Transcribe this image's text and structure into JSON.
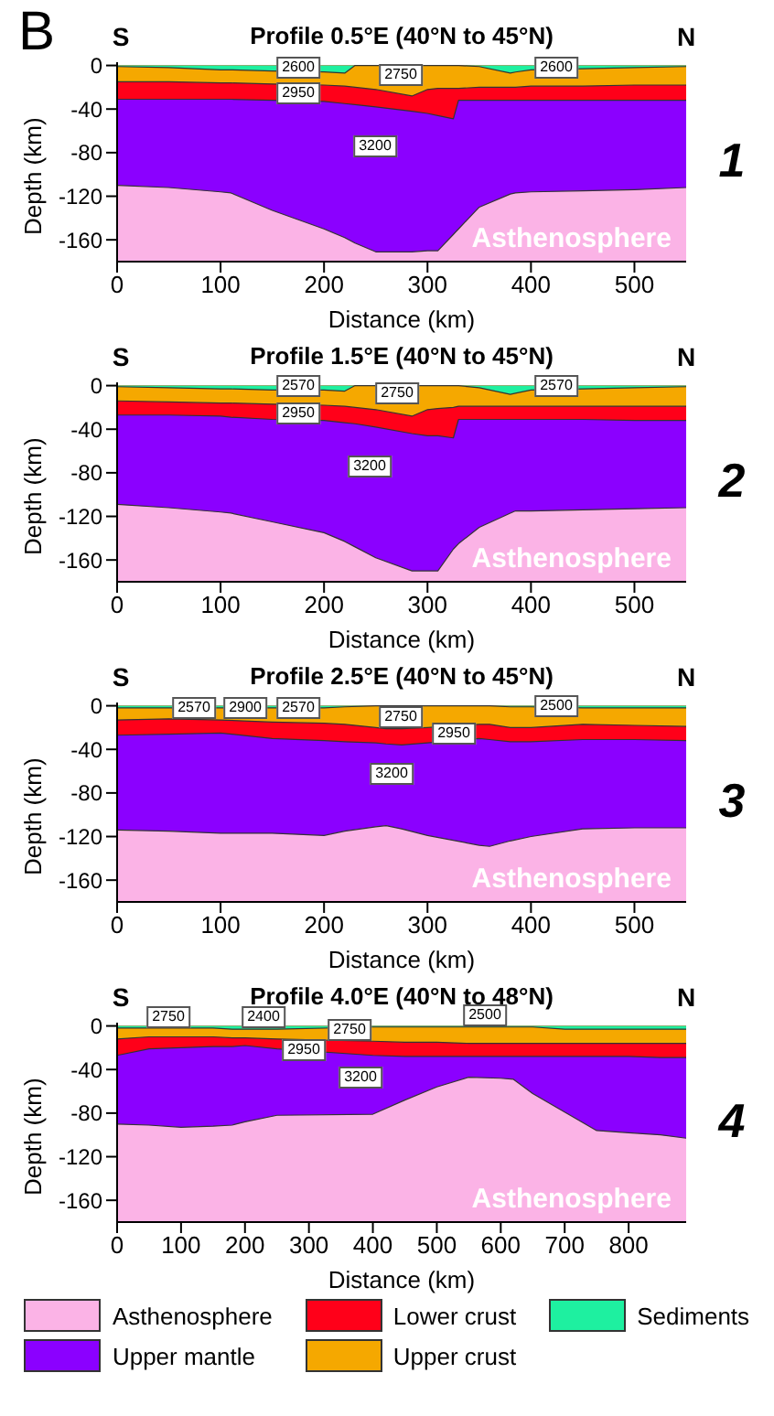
{
  "chart_data": [
    {
      "type": "area",
      "title": "Profile 0.5°E (40°N to 45°N)",
      "xlabel": "Distance (km)",
      "ylabel": "Depth (km)",
      "xlim": [
        0,
        550
      ],
      "xticks": [
        0,
        100,
        200,
        300,
        400,
        500
      ],
      "ylim": [
        -180,
        3
      ],
      "yticks": [
        0,
        -40,
        -80,
        -120,
        -160
      ],
      "bands": [
        {
          "axis": "y",
          "from": -180,
          "to": 0,
          "label": "Asthenosphere",
          "color": "#fbb3e6"
        }
      ],
      "x": [
        0,
        50,
        100,
        110,
        150,
        200,
        220,
        230,
        250,
        285,
        300,
        310,
        325,
        330,
        350,
        380,
        385,
        400,
        450,
        500,
        550
      ],
      "series": [
        {
          "color": "#8b00ff",
          "values": [
            -110,
            -112,
            -116,
            -117,
            -133,
            -150,
            -158,
            -163,
            -171,
            -171,
            -170,
            -170,
            -155,
            -150,
            -130,
            -118,
            -117,
            -116,
            -115,
            -114,
            -112
          ]
        },
        {
          "color": "#ff0019",
          "values": [
            -31,
            -31,
            -31,
            -31,
            -32,
            -33,
            -35,
            -36,
            -38,
            -42,
            -44,
            -46,
            -49,
            -32,
            -32,
            -32,
            -32,
            -32,
            -32,
            -32,
            -32
          ]
        },
        {
          "color": "#f5a800",
          "values": [
            -15,
            -15,
            -16,
            -16,
            -17,
            -18,
            -19,
            -20,
            -22,
            -28,
            -22,
            -21,
            -21,
            -21,
            -20,
            -20,
            -20,
            -19,
            -19,
            -18,
            -18
          ]
        },
        {
          "color": "#1ef0a0",
          "values": [
            -1,
            -2,
            -4,
            -4,
            -5,
            -6,
            -7,
            0,
            0,
            0,
            0,
            0,
            0,
            0,
            -1,
            -7,
            -6,
            -4,
            -3,
            -2,
            -1
          ]
        }
      ],
      "annotations": [
        "S",
        "N",
        "2600",
        "2750",
        "2950",
        "3200",
        "2600",
        "1",
        "B"
      ]
    },
    {
      "type": "area",
      "title": "Profile 1.5°E (40°N to 45°N)",
      "xlabel": "Distance (km)",
      "ylabel": "Depth (km)",
      "xlim": [
        0,
        550
      ],
      "xticks": [
        0,
        100,
        200,
        300,
        400,
        500
      ],
      "ylim": [
        -180,
        3
      ],
      "yticks": [
        0,
        -40,
        -80,
        -120,
        -160
      ],
      "bands": [
        {
          "axis": "y",
          "from": -180,
          "to": 0,
          "label": "Asthenosphere",
          "color": "#fbb3e6"
        }
      ],
      "x": [
        0,
        50,
        100,
        110,
        150,
        200,
        220,
        230,
        250,
        285,
        300,
        310,
        325,
        330,
        350,
        380,
        385,
        400,
        450,
        500,
        550
      ],
      "series": [
        {
          "color": "#8b00ff",
          "values": [
            -109,
            -112,
            -116,
            -117,
            -125,
            -135,
            -143,
            -148,
            -158,
            -170,
            -170,
            -170,
            -150,
            -145,
            -130,
            -117,
            -115,
            -115,
            -114,
            -113,
            -112
          ]
        },
        {
          "color": "#ff0019",
          "values": [
            -27,
            -27,
            -28,
            -29,
            -31,
            -32,
            -34,
            -35,
            -38,
            -44,
            -46,
            -46,
            -48,
            -31,
            -31,
            -31,
            -31,
            -31,
            -31,
            -32,
            -32
          ]
        },
        {
          "color": "#f5a800",
          "values": [
            -14,
            -15,
            -16,
            -16,
            -17,
            -18,
            -19,
            -20,
            -22,
            -28,
            -22,
            -21,
            -20,
            -19,
            -19,
            -19,
            -19,
            -19,
            -19,
            -19,
            -19
          ]
        },
        {
          "color": "#1ef0a0",
          "values": [
            -1,
            -2,
            -3,
            -3,
            -4,
            -4,
            -5,
            0,
            0,
            0,
            0,
            0,
            0,
            0,
            -2,
            -8,
            -7,
            -4,
            -3,
            -2,
            -1
          ]
        }
      ],
      "annotations": [
        "S",
        "N",
        "2570",
        "2750",
        "2950",
        "3200",
        "2570",
        "2"
      ]
    },
    {
      "type": "area",
      "title": "Profile 2.5°E (40°N to 45°N)",
      "xlabel": "Distance (km)",
      "ylabel": "Depth (km)",
      "xlim": [
        0,
        550
      ],
      "xticks": [
        0,
        100,
        200,
        300,
        400,
        500
      ],
      "ylim": [
        -180,
        3
      ],
      "yticks": [
        0,
        -40,
        -80,
        -120,
        -160
      ],
      "bands": [
        {
          "axis": "y",
          "from": -180,
          "to": 0,
          "label": "Asthenosphere",
          "color": "#fbb3e6"
        }
      ],
      "x": [
        0,
        50,
        100,
        150,
        200,
        220,
        250,
        260,
        275,
        300,
        350,
        360,
        380,
        400,
        450,
        500,
        550
      ],
      "series": [
        {
          "color": "#8b00ff",
          "values": [
            -114,
            -115,
            -117,
            -117,
            -119,
            -115,
            -111,
            -110,
            -113,
            -119,
            -128,
            -129,
            -124,
            -120,
            -113,
            -112,
            -112
          ]
        },
        {
          "color": "#ff0019",
          "values": [
            -27,
            -26,
            -25,
            -30,
            -32,
            -33,
            -34,
            -35,
            -36,
            -34,
            -30,
            -31,
            -33,
            -33,
            -31,
            -31,
            -32
          ]
        },
        {
          "color": "#f5a800",
          "values": [
            -13,
            -12,
            -13,
            -15,
            -16,
            -17,
            -20,
            -21,
            -21,
            -20,
            -17,
            -17,
            -20,
            -20,
            -17,
            -18,
            -19
          ]
        },
        {
          "color": "#1ef0a0",
          "values": [
            -2,
            -2,
            -2,
            -2,
            -2,
            -1,
            0,
            0,
            0,
            0,
            0,
            0,
            -1,
            -1,
            -2,
            -2,
            -2
          ]
        }
      ],
      "annotations": [
        "S",
        "N",
        "2570",
        "2900",
        "2570",
        "2750",
        "2950",
        "3200",
        "2500",
        "3"
      ]
    },
    {
      "type": "area",
      "title": "Profile 4.0°E (40°N to 48°N)",
      "xlabel": "Distance (km)",
      "ylabel": "Depth (km)",
      "xlim": [
        0,
        890
      ],
      "xticks": [
        0,
        100,
        200,
        300,
        400,
        500,
        600,
        700,
        800
      ],
      "ylim": [
        -180,
        3
      ],
      "yticks": [
        0,
        -40,
        -80,
        -120,
        -160
      ],
      "legend": "bottom",
      "bands": [
        {
          "axis": "y",
          "from": -180,
          "to": 0,
          "label": "Asthenosphere",
          "color": "#fbb3e6"
        }
      ],
      "x": [
        0,
        50,
        100,
        150,
        180,
        200,
        250,
        400,
        450,
        500,
        550,
        600,
        620,
        650,
        700,
        750,
        800,
        850,
        890
      ],
      "series": [
        {
          "name": "Upper mantle",
          "color": "#8b00ff",
          "values": [
            -90,
            -91,
            -93,
            -92,
            -91,
            -88,
            -82,
            -81,
            -68,
            -56,
            -47,
            -48,
            -49,
            -62,
            -79,
            -96,
            -98,
            -100,
            -103
          ]
        },
        {
          "name": "Lower crust",
          "color": "#ff0019",
          "values": [
            -27,
            -21,
            -20,
            -19,
            -19,
            -18,
            -21,
            -27,
            -28,
            -28,
            -28,
            -28,
            -28,
            -28,
            -28,
            -28,
            -28,
            -29,
            -29
          ]
        },
        {
          "name": "Upper crust",
          "color": "#f5a800",
          "values": [
            -12,
            -10,
            -10,
            -10,
            -11,
            -11,
            -12,
            -14,
            -15,
            -15,
            -16,
            -16,
            -16,
            -16,
            -16,
            -16,
            -16,
            -16,
            -16
          ]
        },
        {
          "name": "Sediments",
          "color": "#1ef0a0",
          "values": [
            -2,
            -2,
            -2,
            -2,
            -3,
            -3,
            -3,
            -1,
            -1,
            -1,
            -1,
            -1,
            -1,
            -1,
            -3,
            -3,
            -3,
            -3,
            -3
          ]
        }
      ],
      "annotations": [
        "S",
        "N",
        "2750",
        "2400",
        "2750",
        "2950",
        "3200",
        "2500",
        "4"
      ]
    }
  ]
}
